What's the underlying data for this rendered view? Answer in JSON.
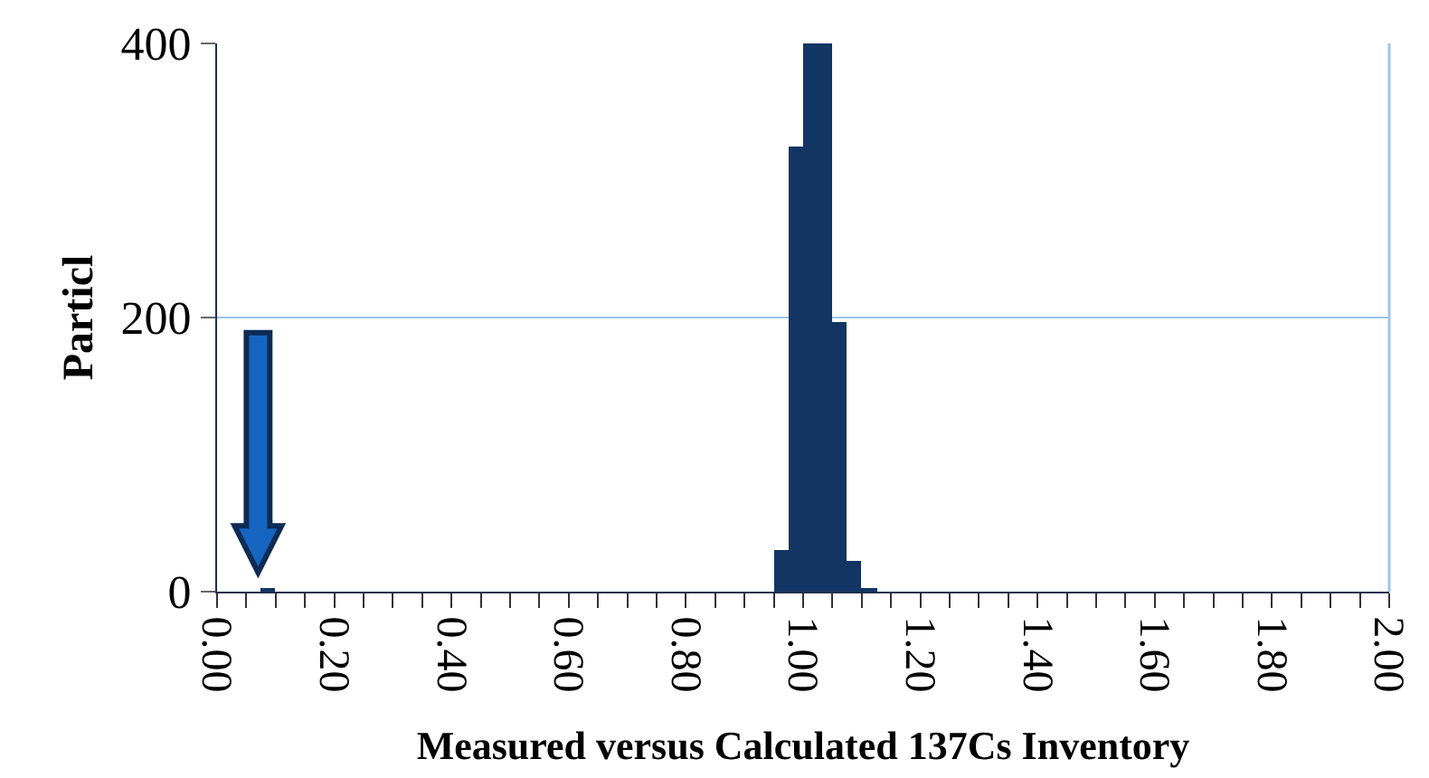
{
  "chart_data": {
    "type": "histogram",
    "xlabel": "Measured versus Calculated 137Cs Inventory",
    "ylabel": "Particl",
    "bins": [
      0.075,
      0.1,
      0.125,
      0.15,
      0.175,
      0.2,
      0.225,
      0.25,
      0.275,
      0.3,
      0.325,
      0.35,
      0.375,
      0.4,
      0.425,
      0.45,
      0.475,
      0.5,
      0.525,
      0.55,
      0.575,
      0.6,
      0.625,
      0.65,
      0.675,
      0.7,
      0.725,
      0.75,
      0.775,
      0.8,
      0.825,
      0.85,
      0.875,
      0.9,
      0.925,
      0.95,
      0.975,
      1.0,
      1.025,
      1.05,
      1.075,
      1.1,
      1.125
    ],
    "values": [
      2,
      0,
      0,
      0,
      0,
      0,
      0,
      0,
      0,
      0,
      0,
      0,
      0,
      0,
      0,
      0,
      0,
      0,
      0,
      0,
      0,
      0,
      0,
      0,
      0,
      0,
      0,
      0,
      0,
      0,
      0,
      0,
      0,
      0,
      0,
      30,
      325,
      400,
      400,
      197,
      23,
      2
    ],
    "color": "#133563",
    "xlim": [
      0,
      2
    ],
    "ylim": [
      0,
      400
    ],
    "yticks": [
      0,
      200,
      400
    ],
    "xticks": [
      {
        "value": 0,
        "label": "0.00"
      },
      {
        "value": 0.05,
        "label": null
      },
      {
        "value": 0.1,
        "label": null
      },
      {
        "value": 0.15,
        "label": null
      },
      {
        "value": 0.2,
        "label": "0.20"
      },
      {
        "value": 0.25,
        "label": null
      },
      {
        "value": 0.3,
        "label": null
      },
      {
        "value": 0.35,
        "label": null
      },
      {
        "value": 0.4,
        "label": "0.40"
      },
      {
        "value": 0.45,
        "label": null
      },
      {
        "value": 0.5,
        "label": null
      },
      {
        "value": 0.55,
        "label": null
      },
      {
        "value": 0.6,
        "label": "0.60"
      },
      {
        "value": 0.65,
        "label": null
      },
      {
        "value": 0.7,
        "label": null
      },
      {
        "value": 0.75,
        "label": null
      },
      {
        "value": 0.8,
        "label": "0.80"
      },
      {
        "value": 0.85,
        "label": null
      },
      {
        "value": 0.9,
        "label": null
      },
      {
        "value": 0.95,
        "label": null
      },
      {
        "value": 1.0,
        "label": "1.00"
      },
      {
        "value": 1.05,
        "label": null
      },
      {
        "value": 1.1,
        "label": null
      },
      {
        "value": 1.15,
        "label": null
      },
      {
        "value": 1.2,
        "label": "1.20"
      },
      {
        "value": 1.25,
        "label": null
      },
      {
        "value": 1.3,
        "label": null
      },
      {
        "value": 1.35,
        "label": null
      },
      {
        "value": 1.4,
        "label": "1.40"
      },
      {
        "value": 1.45,
        "label": null
      },
      {
        "value": 1.5,
        "label": null
      },
      {
        "value": 1.55,
        "label": null
      },
      {
        "value": 1.6,
        "label": "1.60"
      },
      {
        "value": 1.65,
        "label": null
      },
      {
        "value": 1.7,
        "label": null
      },
      {
        "value": 1.75,
        "label": null
      },
      {
        "value": 1.8,
        "label": "1.80"
      },
      {
        "value": 1.85,
        "label": null
      },
      {
        "value": 1.9,
        "label": null
      },
      {
        "value": 1.95,
        "label": null
      },
      {
        "value": 2.0,
        "label": "2.00"
      }
    ],
    "ref_lines": [
      {
        "axis": "y",
        "value": 200,
        "color": "#9ec3f0"
      }
    ],
    "legend": false
  }
}
